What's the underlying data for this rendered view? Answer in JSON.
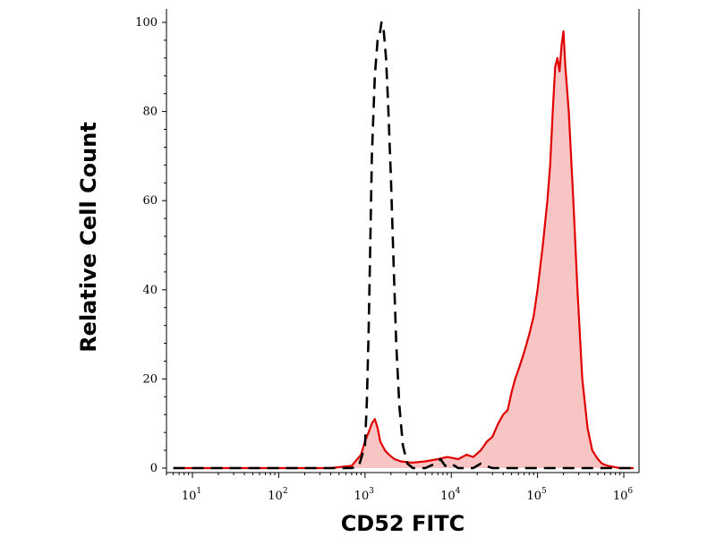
{
  "chart_data": {
    "type": "area",
    "xlabel": "CD52 FITC",
    "ylabel": "Relative Cell Count",
    "x_scale": "log",
    "xlim": [
      5,
      1500000
    ],
    "ylim": [
      0,
      100
    ],
    "x_ticks": [
      {
        "base": "10",
        "exp": "1",
        "value": 10
      },
      {
        "base": "10",
        "exp": "2",
        "value": 100
      },
      {
        "base": "10",
        "exp": "3",
        "value": 1000
      },
      {
        "base": "10",
        "exp": "4",
        "value": 10000
      },
      {
        "base": "10",
        "exp": "5",
        "value": 100000
      },
      {
        "base": "10",
        "exp": "6",
        "value": 1000000
      }
    ],
    "y_ticks": [
      "0",
      "20",
      "40",
      "60",
      "80",
      "100"
    ],
    "grid": false,
    "series": [
      {
        "style": "filled",
        "line_color": "#e00000",
        "fill_color": "#f9c4c4",
        "points": [
          [
            6,
            0
          ],
          [
            100,
            0
          ],
          [
            400,
            0
          ],
          [
            700,
            0.5
          ],
          [
            900,
            3
          ],
          [
            1000,
            6
          ],
          [
            1100,
            8
          ],
          [
            1200,
            10
          ],
          [
            1300,
            11
          ],
          [
            1400,
            9
          ],
          [
            1500,
            6
          ],
          [
            1700,
            4
          ],
          [
            1900,
            3
          ],
          [
            2200,
            2
          ],
          [
            2600,
            1.5
          ],
          [
            3500,
            1.2
          ],
          [
            5000,
            1.5
          ],
          [
            7000,
            2
          ],
          [
            9000,
            2.5
          ],
          [
            12000,
            2
          ],
          [
            15000,
            3
          ],
          [
            18000,
            2.5
          ],
          [
            22000,
            4
          ],
          [
            26000,
            6
          ],
          [
            30000,
            7
          ],
          [
            35000,
            10
          ],
          [
            40000,
            12
          ],
          [
            45000,
            13
          ],
          [
            50000,
            17
          ],
          [
            55000,
            20
          ],
          [
            60000,
            22
          ],
          [
            70000,
            26
          ],
          [
            80000,
            30
          ],
          [
            90000,
            34
          ],
          [
            100000,
            40
          ],
          [
            115000,
            50
          ],
          [
            130000,
            60
          ],
          [
            140000,
            68
          ],
          [
            150000,
            80
          ],
          [
            160000,
            90
          ],
          [
            170000,
            92
          ],
          [
            180000,
            89
          ],
          [
            190000,
            95
          ],
          [
            200000,
            98
          ],
          [
            210000,
            90
          ],
          [
            230000,
            80
          ],
          [
            260000,
            60
          ],
          [
            290000,
            40
          ],
          [
            330000,
            20
          ],
          [
            380000,
            9
          ],
          [
            430000,
            4
          ],
          [
            500000,
            2
          ],
          [
            560000,
            1
          ],
          [
            650000,
            0.5
          ],
          [
            900000,
            0
          ],
          [
            1300000,
            0
          ]
        ]
      },
      {
        "style": "dashed",
        "line_color": "#000000",
        "points": [
          [
            6,
            0
          ],
          [
            300,
            0
          ],
          [
            700,
            0
          ],
          [
            850,
            0.5
          ],
          [
            1000,
            5
          ],
          [
            1050,
            15
          ],
          [
            1100,
            30
          ],
          [
            1150,
            50
          ],
          [
            1200,
            70
          ],
          [
            1300,
            88
          ],
          [
            1400,
            96
          ],
          [
            1500,
            98
          ],
          [
            1550,
            100
          ],
          [
            1650,
            98
          ],
          [
            1750,
            92
          ],
          [
            1850,
            82
          ],
          [
            2000,
            65
          ],
          [
            2150,
            45
          ],
          [
            2300,
            28
          ],
          [
            2500,
            14
          ],
          [
            2750,
            5
          ],
          [
            3100,
            1
          ],
          [
            3600,
            0
          ],
          [
            5000,
            0
          ],
          [
            6500,
            1
          ],
          [
            7500,
            2
          ],
          [
            8500,
            0.5
          ],
          [
            10000,
            1
          ],
          [
            12000,
            0
          ],
          [
            18000,
            0
          ],
          [
            22000,
            1
          ],
          [
            25000,
            0.5
          ],
          [
            30000,
            0
          ],
          [
            1300000,
            0
          ]
        ]
      }
    ]
  }
}
